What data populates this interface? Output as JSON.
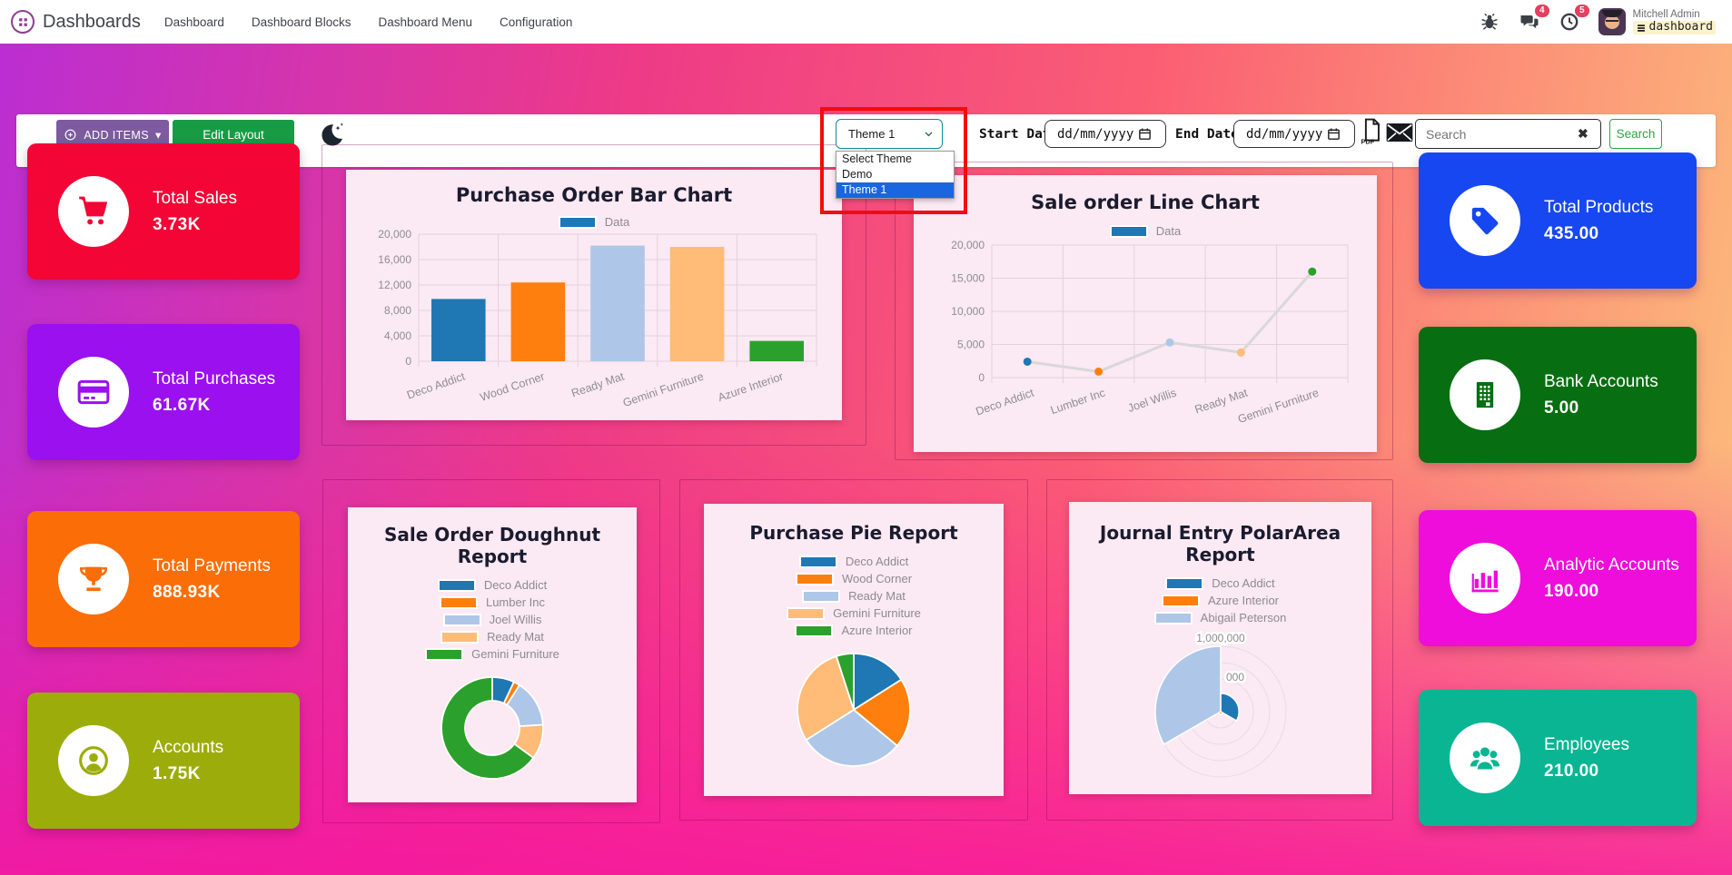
{
  "navbar": {
    "brand": "Dashboards",
    "menu": [
      "Dashboard",
      "Dashboard Blocks",
      "Dashboard Menu",
      "Configuration"
    ],
    "icons": [
      "bug-icon",
      "messages-icon",
      "activities-icon"
    ],
    "badges": {
      "messages": "4",
      "activities": "5"
    },
    "user": {
      "name": "Mitchell Admin",
      "database": "dashboard"
    }
  },
  "toolbar": {
    "add_items_label": "ADD ITEMS",
    "edit_layout_label": "Edit Layout",
    "theme_select": {
      "value": "Theme 1",
      "options": [
        "Select Theme",
        "Demo",
        "Theme 1"
      ],
      "selected_option": "Theme 1",
      "border_color": "#0e8c96",
      "highlight_color": "#1a66e0"
    },
    "start_date": {
      "label": "Start Date:",
      "value": "dd/mm/yyyy"
    },
    "end_date": {
      "label": "End Date:",
      "value": "dd/mm/yyyy"
    },
    "search": {
      "placeholder": "Search",
      "button_label": "Search"
    },
    "annotation_color": "#f40b0b"
  },
  "tiles": {
    "left": [
      {
        "label": "Total Sales",
        "value": "3.73K",
        "color": "#f30535",
        "icon": "cart-icon"
      },
      {
        "label": "Total Purchases",
        "value": "61.67K",
        "color": "#9a10ef",
        "icon": "credit-card-icon"
      },
      {
        "label": "Total Payments",
        "value": "888.93K",
        "color": "#fb6d07",
        "icon": "trophy-icon"
      },
      {
        "label": "Accounts",
        "value": "1.75K",
        "color": "#9cad0b",
        "icon": "person-icon"
      }
    ],
    "right": [
      {
        "label": "Total Products",
        "value": "435.00",
        "color": "#1747f0",
        "icon": "tag-icon"
      },
      {
        "label": "Bank Accounts",
        "value": "5.00",
        "color": "#076e12",
        "icon": "building-icon"
      },
      {
        "label": "Analytic Accounts",
        "value": "190.00",
        "color": "#ee0ddb",
        "icon": "bar-chart-icon"
      },
      {
        "label": "Employees",
        "value": "210.00",
        "color": "#0ab593",
        "icon": "people-icon"
      }
    ]
  },
  "chart_data": [
    {
      "type": "bar",
      "title": "Purchase Order Bar Chart",
      "legend": [
        {
          "label": "Data",
          "color": "#1f77b4"
        }
      ],
      "categories": [
        "Deco Addict",
        "Wood Corner",
        "Ready Mat",
        "Gemini Furniture",
        "Azure Interior"
      ],
      "values": [
        9800,
        12400,
        18200,
        18000,
        3200
      ],
      "bar_colors": [
        "#1f77b4",
        "#ff7f0e",
        "#aec7e8",
        "#ffbb78",
        "#2ca02c"
      ],
      "ylim": [
        0,
        20000
      ],
      "yticks": [
        0,
        4000,
        8000,
        12000,
        16000,
        20000
      ],
      "grid": true,
      "legend_position": "top"
    },
    {
      "type": "line",
      "title": "Sale order Line Chart",
      "legend": [
        {
          "label": "Data",
          "color": "#1f77b4"
        }
      ],
      "categories": [
        "Deco Addict",
        "Lumber Inc",
        "Joel Willis",
        "Ready Mat",
        "Gemini Furniture"
      ],
      "values": [
        2400,
        900,
        5300,
        3800,
        16000
      ],
      "point_colors": [
        "#1f77b4",
        "#ff7f0e",
        "#aec7e8",
        "#ffbb78",
        "#2ca02c"
      ],
      "line_color": "#d8d8d8",
      "ylim": [
        0,
        20000
      ],
      "yticks": [
        0,
        5000,
        10000,
        15000,
        20000
      ],
      "grid": true,
      "legend_position": "top"
    },
    {
      "type": "doughnut",
      "title": "Sale Order Doughnut Report",
      "series": [
        {
          "label": "Deco Addict",
          "value": 7,
          "color": "#1f77b4"
        },
        {
          "label": "Lumber Inc",
          "value": 2,
          "color": "#ff7f0e"
        },
        {
          "label": "Joel Willis",
          "value": 15,
          "color": "#aec7e8"
        },
        {
          "label": "Ready Mat",
          "value": 11,
          "color": "#ffbb78"
        },
        {
          "label": "Gemini Furniture",
          "value": 65,
          "color": "#2ca02c"
        }
      ],
      "legend_position": "top"
    },
    {
      "type": "pie",
      "title": "Purchase Pie Report",
      "series": [
        {
          "label": "Deco Addict",
          "value": 16,
          "color": "#1f77b4"
        },
        {
          "label": "Wood Corner",
          "value": 20,
          "color": "#ff7f0e"
        },
        {
          "label": "Ready Mat",
          "value": 30,
          "color": "#aec7e8"
        },
        {
          "label": "Gemini Furniture",
          "value": 29,
          "color": "#ffbb78"
        },
        {
          "label": "Azure Interior",
          "value": 5,
          "color": "#2ca02c"
        }
      ],
      "legend_position": "top"
    },
    {
      "type": "polarArea",
      "title": "Journal Entry PolarArea Report",
      "series": [
        {
          "label": "Deco Addict",
          "value": 280000,
          "color": "#1f77b4"
        },
        {
          "label": "Azure Interior",
          "value": 40000,
          "color": "#ff7f0e"
        },
        {
          "label": "Abigail Peterson",
          "value": 1000000,
          "color": "#aec7e8"
        }
      ],
      "rmax": 1000000,
      "rings": [
        0.25,
        0.5,
        0.75,
        1
      ],
      "rtick_labels": [
        "1,000,000",
        "000"
      ],
      "legend_position": "top"
    }
  ]
}
